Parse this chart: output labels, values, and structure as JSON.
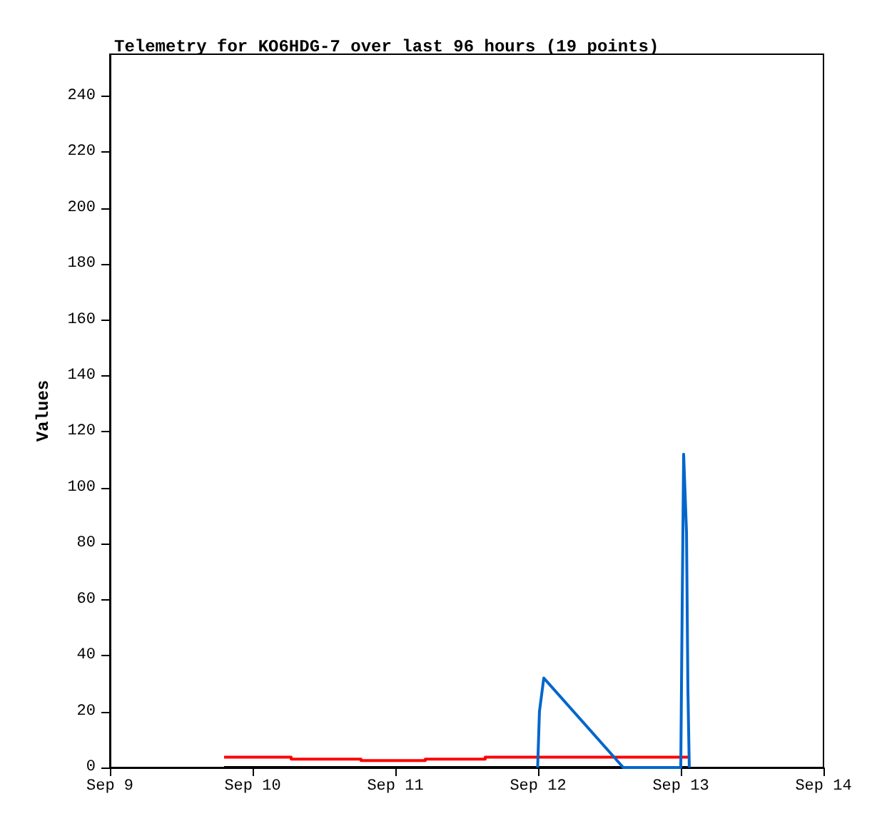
{
  "chart_data": {
    "type": "line",
    "title": "Telemetry for KO6HDG-7 over last 96 hours (19 points)",
    "ylabel": "Values",
    "xlim": [
      "--09-09",
      "--09-14"
    ],
    "xticks": [
      {
        "value": "--09-09",
        "label": "Sep 9"
      },
      {
        "value": "--09-10",
        "label": "Sep 10"
      },
      {
        "value": "--09-11",
        "label": "Sep 11"
      },
      {
        "value": "--09-12",
        "label": "Sep 12"
      },
      {
        "value": "--09-13",
        "label": "Sep 13"
      },
      {
        "value": "--09-14",
        "label": "Sep 14"
      }
    ],
    "ylim": [
      0,
      255
    ],
    "yticks": [
      0,
      20,
      40,
      60,
      80,
      100,
      120,
      140,
      160,
      180,
      200,
      220,
      240
    ],
    "grid": false,
    "series": [
      {
        "color": "#000000",
        "x": [
          "--09-09T19:12",
          "--09-13T01:26"
        ],
        "values": [
          0,
          0
        ]
      },
      {
        "type": "step",
        "color": "#ff0000",
        "x": [
          "--09-09T19:12",
          "--09-10T06:29",
          "--09-10T18:14",
          "--09-11T05:02",
          "--09-11T15:07",
          "--09-13T01:26"
        ],
        "values": [
          3.7,
          3,
          2.5,
          3,
          3.7,
          3.7
        ]
      },
      {
        "color": "#0066cc",
        "x": [
          "--09-11T23:56",
          "--09-12T00:14",
          "--09-12T00:58",
          "--09-12T14:20",
          "--09-13T00:00",
          "--09-13T00:14",
          "--09-13T00:29",
          "--09-13T00:58",
          "--09-13T01:12",
          "--09-13T01:26"
        ],
        "values": [
          0,
          20,
          32,
          0,
          0,
          56,
          112,
          84,
          28,
          0
        ]
      }
    ]
  }
}
